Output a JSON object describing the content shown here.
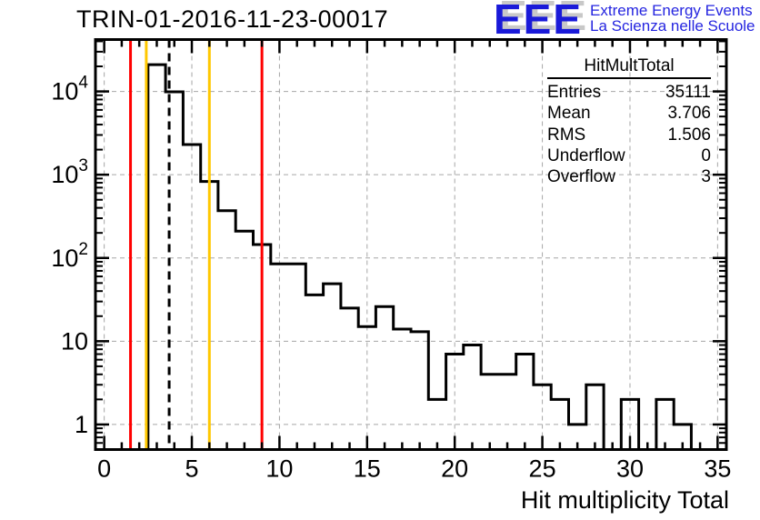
{
  "title": "TRIN-01-2016-11-23-00017",
  "logo": {
    "acronym": "EEE",
    "line1": "Extreme Energy Events",
    "line2": "La Scienza nelle Scuole",
    "acronym_color": "#1a1ad9",
    "shadow_color": "#c8c8c8",
    "text_color": "#2525e0"
  },
  "stats": {
    "title": "HitMultTotal",
    "rows": [
      [
        "Entries",
        "35111"
      ],
      [
        "Mean",
        "3.706"
      ],
      [
        "RMS",
        "1.506"
      ],
      [
        "Underflow",
        "0"
      ],
      [
        "Overflow",
        "3"
      ]
    ]
  },
  "chart_data": {
    "type": "bar",
    "render": "step-outline-histogram",
    "title": "TRIN-01-2016-11-23-00017",
    "xlabel": "Hit multiplicity Total",
    "ylabel": "",
    "y_scale": "log",
    "xlim": [
      -0.5,
      35.5
    ],
    "ylim": [
      0.5,
      42000
    ],
    "grid": "dashed",
    "legend": "none",
    "bin_centers": [
      0,
      1,
      2,
      3,
      4,
      5,
      6,
      7,
      8,
      9,
      10,
      11,
      12,
      13,
      14,
      15,
      16,
      17,
      18,
      19,
      20,
      21,
      22,
      23,
      24,
      25,
      26,
      27,
      28,
      29,
      30,
      31,
      32,
      33,
      34,
      35
    ],
    "values": [
      0,
      0,
      0,
      21000,
      9900,
      2300,
      830,
      370,
      210,
      145,
      85,
      85,
      36,
      49,
      25,
      15,
      26,
      14,
      13,
      2,
      7,
      9,
      4,
      4,
      7,
      3,
      2,
      1,
      3,
      0,
      2,
      0,
      2,
      1,
      0,
      0
    ],
    "x_ticks": [
      0,
      5,
      10,
      15,
      20,
      25,
      30,
      35
    ],
    "y_ticks": [
      {
        "value": 1,
        "base": "1",
        "exp": ""
      },
      {
        "value": 10,
        "base": "10",
        "exp": ""
      },
      {
        "value": 100,
        "base": "10",
        "exp": "2"
      },
      {
        "value": 1000,
        "base": "10",
        "exp": "3"
      },
      {
        "value": 10000,
        "base": "10",
        "exp": "4"
      }
    ],
    "marker_lines": [
      {
        "x": 1.5,
        "color": "#ff0000",
        "style": "solid",
        "name": "red-low-threshold"
      },
      {
        "x": 2.4,
        "color": "#ffc800",
        "style": "solid",
        "name": "yellow-low-threshold"
      },
      {
        "x": 3.706,
        "color": "#000000",
        "style": "dashed",
        "name": "mean-line"
      },
      {
        "x": 6.0,
        "color": "#ffc800",
        "style": "solid",
        "name": "yellow-high-threshold"
      },
      {
        "x": 9.0,
        "color": "#ff0000",
        "style": "solid",
        "name": "red-high-threshold"
      }
    ],
    "histogram_color": "#000000",
    "grid_color": "#a6a6a6"
  }
}
